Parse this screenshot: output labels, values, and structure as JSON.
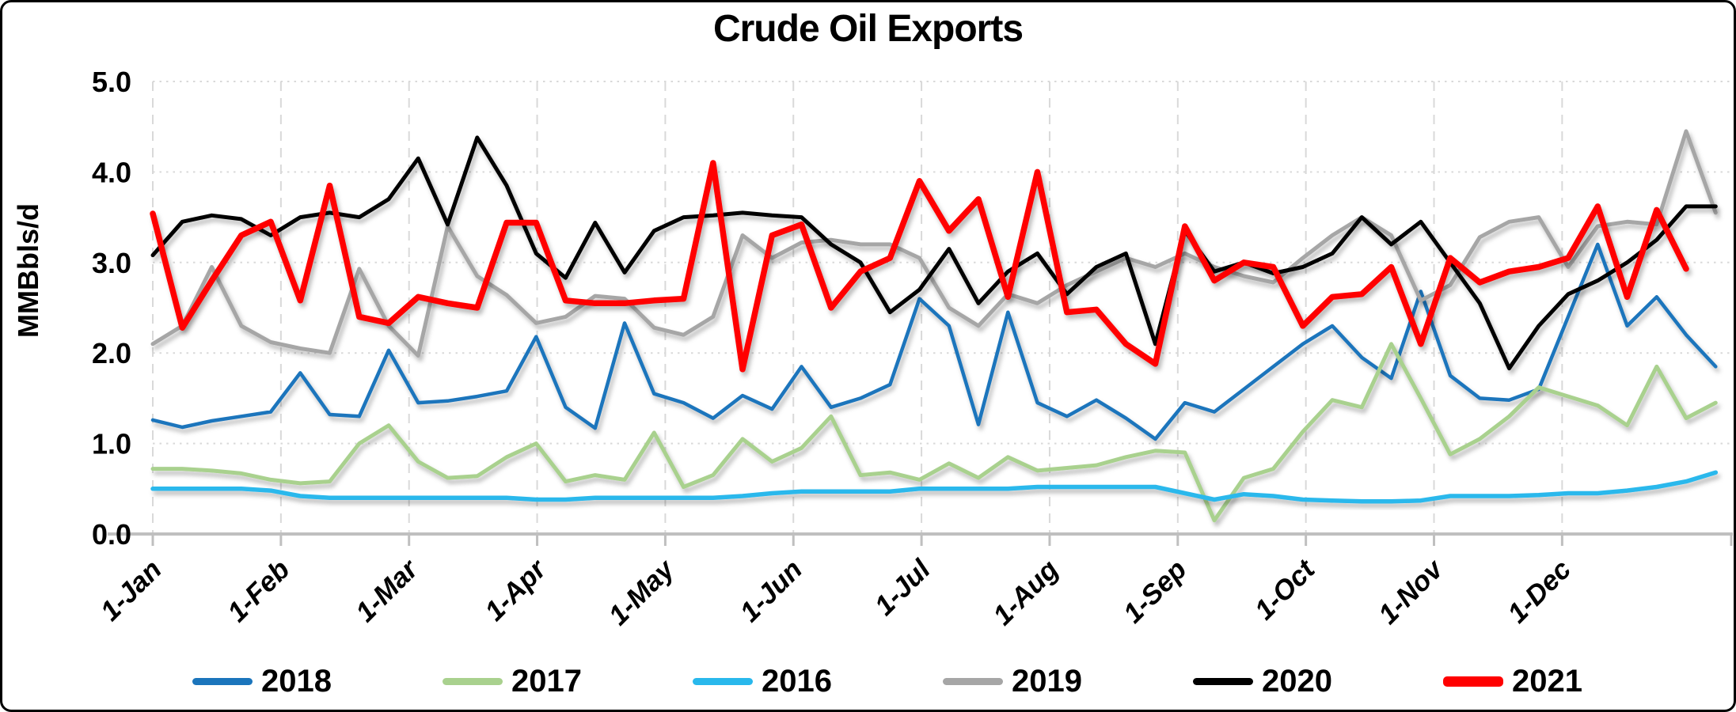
{
  "chart_data": {
    "type": "line",
    "title": "Crude Oil Exports",
    "ylabel": "MMBbls/d",
    "xlabel": "",
    "ylim": [
      0,
      5
    ],
    "grid": true,
    "legend_position": "bottom",
    "x_unit": "weekly observations from 1-Jan through year end",
    "y_tick_labels": [
      "0.0",
      "1.0",
      "2.0",
      "3.0",
      "4.0",
      "5.0"
    ],
    "x_tick_labels": [
      "1-Jan",
      "1-Feb",
      "1-Mar",
      "1-Apr",
      "1-May",
      "1-Jun",
      "1-Jul",
      "1-Aug",
      "1-Sep",
      "1-Oct",
      "1-Nov",
      "1-Dec"
    ],
    "series": [
      {
        "name": "2018",
        "color": "#1B75BC",
        "stroke_width": 4.5,
        "values": [
          1.26,
          1.18,
          1.25,
          1.3,
          1.35,
          1.78,
          1.32,
          1.3,
          2.03,
          1.45,
          1.47,
          1.52,
          1.58,
          2.18,
          1.4,
          1.17,
          2.33,
          1.55,
          1.45,
          1.28,
          1.53,
          1.38,
          1.85,
          1.4,
          1.5,
          1.65,
          2.6,
          2.3,
          1.21,
          2.45,
          1.45,
          1.3,
          1.48,
          1.28,
          1.05,
          1.45,
          1.35,
          1.6,
          1.85,
          2.1,
          2.3,
          1.95,
          1.72,
          2.68,
          1.75,
          1.5,
          1.48,
          1.6,
          2.4,
          3.2,
          2.3,
          2.62,
          2.2,
          1.85
        ]
      },
      {
        "name": "2017",
        "color": "#A9D18E",
        "stroke_width": 5,
        "values": [
          0.72,
          0.72,
          0.7,
          0.67,
          0.6,
          0.56,
          0.58,
          1.0,
          1.2,
          0.8,
          0.62,
          0.64,
          0.85,
          1.0,
          0.58,
          0.65,
          0.6,
          1.12,
          0.52,
          0.65,
          1.05,
          0.8,
          0.95,
          1.3,
          0.65,
          0.68,
          0.6,
          0.78,
          0.62,
          0.85,
          0.7,
          0.73,
          0.76,
          0.85,
          0.92,
          0.9,
          0.15,
          0.62,
          0.72,
          1.13,
          1.48,
          1.4,
          2.1,
          1.5,
          0.88,
          1.05,
          1.3,
          1.62,
          1.52,
          1.42,
          1.2,
          1.85,
          1.28,
          1.45
        ]
      },
      {
        "name": "2016",
        "color": "#29B8EC",
        "stroke_width": 5.5,
        "values": [
          0.5,
          0.5,
          0.5,
          0.5,
          0.48,
          0.42,
          0.4,
          0.4,
          0.4,
          0.4,
          0.4,
          0.4,
          0.4,
          0.38,
          0.38,
          0.4,
          0.4,
          0.4,
          0.4,
          0.4,
          0.42,
          0.45,
          0.47,
          0.47,
          0.47,
          0.47,
          0.5,
          0.5,
          0.5,
          0.5,
          0.52,
          0.52,
          0.52,
          0.52,
          0.52,
          0.45,
          0.38,
          0.44,
          0.42,
          0.38,
          0.37,
          0.36,
          0.36,
          0.37,
          0.42,
          0.42,
          0.42,
          0.43,
          0.45,
          0.45,
          0.48,
          0.52,
          0.58,
          0.68
        ]
      },
      {
        "name": "2019",
        "color": "#A6A6A6",
        "stroke_width": 5,
        "values": [
          2.1,
          2.3,
          2.95,
          2.3,
          2.12,
          2.05,
          2.0,
          2.93,
          2.3,
          1.97,
          3.4,
          2.85,
          2.64,
          2.33,
          2.4,
          2.63,
          2.6,
          2.28,
          2.2,
          2.4,
          3.3,
          3.05,
          3.22,
          3.25,
          3.2,
          3.2,
          3.05,
          2.5,
          2.3,
          2.65,
          2.55,
          2.75,
          2.9,
          3.05,
          2.95,
          3.1,
          2.95,
          2.85,
          2.78,
          3.05,
          3.3,
          3.5,
          3.3,
          2.58,
          2.75,
          3.28,
          3.45,
          3.5,
          2.95,
          3.4,
          3.45,
          3.42,
          4.45,
          3.55
        ]
      },
      {
        "name": "2020",
        "color": "#000000",
        "stroke_width": 5,
        "values": [
          3.08,
          3.45,
          3.52,
          3.48,
          3.3,
          3.5,
          3.55,
          3.5,
          3.7,
          4.15,
          3.42,
          4.38,
          3.85,
          3.1,
          2.83,
          3.44,
          2.89,
          3.35,
          3.5,
          3.52,
          3.55,
          3.52,
          3.5,
          3.2,
          3.0,
          2.45,
          2.7,
          3.15,
          2.55,
          2.9,
          3.1,
          2.65,
          2.95,
          3.1,
          2.1,
          3.35,
          2.9,
          3.0,
          2.88,
          2.95,
          3.1,
          3.5,
          3.2,
          3.45,
          3.0,
          2.55,
          1.83,
          2.3,
          2.65,
          2.8,
          3.0,
          3.25,
          3.62,
          3.62
        ]
      },
      {
        "name": "2021",
        "color": "#FF0000",
        "stroke_width": 7.5,
        "values": [
          3.54,
          2.28,
          2.8,
          3.3,
          3.45,
          2.58,
          3.85,
          2.4,
          2.33,
          2.62,
          2.55,
          2.5,
          3.44,
          3.44,
          2.58,
          2.55,
          2.55,
          2.58,
          2.6,
          4.1,
          1.82,
          3.3,
          3.42,
          2.5,
          2.9,
          3.05,
          3.9,
          3.35,
          3.7,
          2.62,
          4.0,
          2.45,
          2.48,
          2.1,
          1.88,
          3.4,
          2.8,
          3.0,
          2.95,
          2.3,
          2.62,
          2.65,
          2.95,
          2.1,
          3.05,
          2.78,
          2.9,
          2.95,
          3.05,
          3.62,
          2.62,
          3.58,
          2.93
        ]
      }
    ]
  },
  "legend": {
    "items": [
      {
        "label": "2018"
      },
      {
        "label": "2017"
      },
      {
        "label": "2016"
      },
      {
        "label": "2019"
      },
      {
        "label": "2020"
      },
      {
        "label": "2021"
      }
    ]
  }
}
